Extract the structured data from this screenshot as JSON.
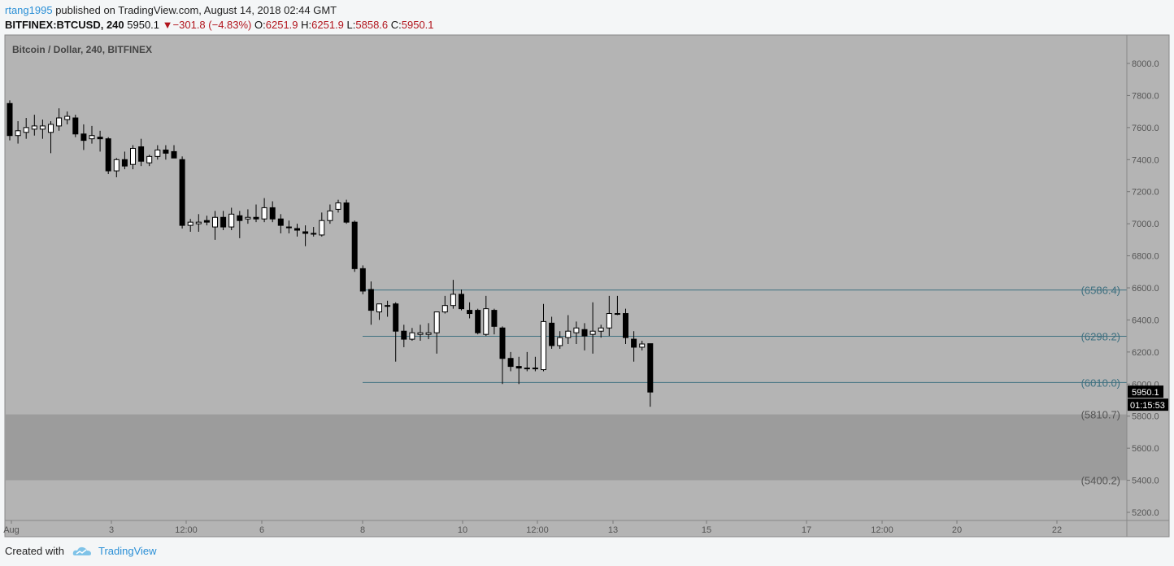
{
  "header": {
    "user": "rtang1995",
    "published_text": "published on TradingView.com, August 14, 2018 02:44 GMT"
  },
  "infobar": {
    "symbol": "BITFINEX:BTCUSD, 240",
    "last": "5950.1",
    "change": "−301.8 (−4.83%)",
    "o_label": "O:",
    "o": "6251.9",
    "h_label": "H:",
    "h": "6251.9",
    "l_label": "L:",
    "l": "5858.6",
    "c_label": "C:",
    "c": "5950.1"
  },
  "chart_data": {
    "type": "candlestick",
    "title": "Bitcoin / Dollar, 240, BITFINEX",
    "ylim": [
      5150,
      8150
    ],
    "yticks": [
      5200,
      5400,
      5600,
      5800,
      6000,
      6200,
      6400,
      6600,
      6800,
      7000,
      7200,
      7400,
      7600,
      7800,
      8000
    ],
    "xticks": [
      "Aug",
      "3",
      "12:00",
      "6",
      "8",
      "10",
      "12:00",
      "13",
      "15",
      "17",
      "12:00",
      "20",
      "22"
    ],
    "candles": [
      {
        "o": 7750,
        "h": 7770,
        "l": 7520,
        "c": 7550
      },
      {
        "o": 7550,
        "h": 7640,
        "l": 7500,
        "c": 7580
      },
      {
        "o": 7570,
        "h": 7660,
        "l": 7530,
        "c": 7600
      },
      {
        "o": 7590,
        "h": 7680,
        "l": 7550,
        "c": 7610
      },
      {
        "o": 7590,
        "h": 7650,
        "l": 7530,
        "c": 7610
      },
      {
        "o": 7570,
        "h": 7640,
        "l": 7440,
        "c": 7620
      },
      {
        "o": 7610,
        "h": 7720,
        "l": 7580,
        "c": 7660
      },
      {
        "o": 7650,
        "h": 7700,
        "l": 7620,
        "c": 7670
      },
      {
        "o": 7660,
        "h": 7680,
        "l": 7540,
        "c": 7560
      },
      {
        "o": 7560,
        "h": 7620,
        "l": 7460,
        "c": 7520
      },
      {
        "o": 7530,
        "h": 7610,
        "l": 7500,
        "c": 7550
      },
      {
        "o": 7540,
        "h": 7580,
        "l": 7450,
        "c": 7530
      },
      {
        "o": 7530,
        "h": 7540,
        "l": 7310,
        "c": 7330
      },
      {
        "o": 7330,
        "h": 7410,
        "l": 7290,
        "c": 7400
      },
      {
        "o": 7400,
        "h": 7450,
        "l": 7340,
        "c": 7360
      },
      {
        "o": 7370,
        "h": 7490,
        "l": 7340,
        "c": 7470
      },
      {
        "o": 7480,
        "h": 7530,
        "l": 7360,
        "c": 7390
      },
      {
        "o": 7380,
        "h": 7430,
        "l": 7360,
        "c": 7420
      },
      {
        "o": 7420,
        "h": 7490,
        "l": 7400,
        "c": 7460
      },
      {
        "o": 7460,
        "h": 7490,
        "l": 7400,
        "c": 7440
      },
      {
        "o": 7450,
        "h": 7490,
        "l": 7410,
        "c": 7410
      },
      {
        "o": 7400,
        "h": 7420,
        "l": 6970,
        "c": 6990
      },
      {
        "o": 6990,
        "h": 7030,
        "l": 6950,
        "c": 7010
      },
      {
        "o": 7000,
        "h": 7060,
        "l": 6950,
        "c": 7010
      },
      {
        "o": 7020,
        "h": 7050,
        "l": 6990,
        "c": 7010
      },
      {
        "o": 6980,
        "h": 7080,
        "l": 6900,
        "c": 7040
      },
      {
        "o": 7040,
        "h": 7080,
        "l": 6960,
        "c": 6980
      },
      {
        "o": 6980,
        "h": 7100,
        "l": 6960,
        "c": 7060
      },
      {
        "o": 7050,
        "h": 7080,
        "l": 6910,
        "c": 7020
      },
      {
        "o": 7030,
        "h": 7090,
        "l": 7000,
        "c": 7040
      },
      {
        "o": 7040,
        "h": 7120,
        "l": 7010,
        "c": 7030
      },
      {
        "o": 7030,
        "h": 7160,
        "l": 7010,
        "c": 7100
      },
      {
        "o": 7100,
        "h": 7140,
        "l": 7010,
        "c": 7030
      },
      {
        "o": 7030,
        "h": 7060,
        "l": 6940,
        "c": 6990
      },
      {
        "o": 6980,
        "h": 7020,
        "l": 6940,
        "c": 6980
      },
      {
        "o": 6970,
        "h": 7000,
        "l": 6920,
        "c": 6960
      },
      {
        "o": 6950,
        "h": 6990,
        "l": 6860,
        "c": 6940
      },
      {
        "o": 6940,
        "h": 6980,
        "l": 6920,
        "c": 6940
      },
      {
        "o": 6930,
        "h": 7070,
        "l": 6920,
        "c": 7020
      },
      {
        "o": 7020,
        "h": 7120,
        "l": 7000,
        "c": 7080
      },
      {
        "o": 7090,
        "h": 7150,
        "l": 7070,
        "c": 7130
      },
      {
        "o": 7130,
        "h": 7150,
        "l": 7000,
        "c": 7010
      },
      {
        "o": 7010,
        "h": 7020,
        "l": 6700,
        "c": 6720
      },
      {
        "o": 6720,
        "h": 6740,
        "l": 6560,
        "c": 6580
      },
      {
        "o": 6590,
        "h": 6640,
        "l": 6370,
        "c": 6460
      },
      {
        "o": 6450,
        "h": 6500,
        "l": 6400,
        "c": 6500
      },
      {
        "o": 6490,
        "h": 6520,
        "l": 6420,
        "c": 6490
      },
      {
        "o": 6500,
        "h": 6510,
        "l": 6140,
        "c": 6330
      },
      {
        "o": 6330,
        "h": 6370,
        "l": 6230,
        "c": 6280
      },
      {
        "o": 6280,
        "h": 6350,
        "l": 6270,
        "c": 6320
      },
      {
        "o": 6310,
        "h": 6370,
        "l": 6270,
        "c": 6320
      },
      {
        "o": 6310,
        "h": 6380,
        "l": 6280,
        "c": 6320
      },
      {
        "o": 6320,
        "h": 6440,
        "l": 6190,
        "c": 6450
      },
      {
        "o": 6450,
        "h": 6550,
        "l": 6440,
        "c": 6490
      },
      {
        "o": 6490,
        "h": 6650,
        "l": 6470,
        "c": 6560
      },
      {
        "o": 6560,
        "h": 6590,
        "l": 6460,
        "c": 6470
      },
      {
        "o": 6460,
        "h": 6510,
        "l": 6410,
        "c": 6440
      },
      {
        "o": 6460,
        "h": 6470,
        "l": 6310,
        "c": 6320
      },
      {
        "o": 6310,
        "h": 6550,
        "l": 6300,
        "c": 6470
      },
      {
        "o": 6460,
        "h": 6470,
        "l": 6310,
        "c": 6360
      },
      {
        "o": 6350,
        "h": 6360,
        "l": 6000,
        "c": 6160
      },
      {
        "o": 6160,
        "h": 6200,
        "l": 6080,
        "c": 6110
      },
      {
        "o": 6110,
        "h": 6170,
        "l": 6000,
        "c": 6100
      },
      {
        "o": 6100,
        "h": 6200,
        "l": 6080,
        "c": 6100
      },
      {
        "o": 6100,
        "h": 6170,
        "l": 6080,
        "c": 6100
      },
      {
        "o": 6090,
        "h": 6500,
        "l": 6080,
        "c": 6390
      },
      {
        "o": 6380,
        "h": 6420,
        "l": 6220,
        "c": 6240
      },
      {
        "o": 6240,
        "h": 6330,
        "l": 6220,
        "c": 6290
      },
      {
        "o": 6290,
        "h": 6430,
        "l": 6250,
        "c": 6330
      },
      {
        "o": 6320,
        "h": 6390,
        "l": 6250,
        "c": 6350
      },
      {
        "o": 6340,
        "h": 6380,
        "l": 6210,
        "c": 6300
      },
      {
        "o": 6310,
        "h": 6510,
        "l": 6190,
        "c": 6330
      },
      {
        "o": 6330,
        "h": 6370,
        "l": 6290,
        "c": 6350
      },
      {
        "o": 6350,
        "h": 6550,
        "l": 6300,
        "c": 6440
      },
      {
        "o": 6440,
        "h": 6550,
        "l": 6430,
        "c": 6440
      },
      {
        "o": 6440,
        "h": 6470,
        "l": 6250,
        "c": 6290
      },
      {
        "o": 6280,
        "h": 6330,
        "l": 6140,
        "c": 6230
      },
      {
        "o": 6230,
        "h": 6270,
        "l": 6210,
        "c": 6250
      },
      {
        "o": 6251.9,
        "h": 6251.9,
        "l": 5858.6,
        "c": 5950.1
      }
    ],
    "levels": [
      {
        "label": "(6586.4)",
        "value": 6586.4
      },
      {
        "label": "(6298.2)",
        "value": 6298.2
      },
      {
        "label": "(6010.0)",
        "value": 6010.0
      }
    ],
    "zone": {
      "top": 5810.7,
      "bottom": 5400.2,
      "top_label": "(5810.7)",
      "bottom_label": "(5400.2)"
    },
    "last_price_label": "5950.1",
    "countdown": "01:15:53",
    "colors": {
      "bg": "#b4b4b4",
      "zone": "#9c9c9c",
      "level": "#3e7080",
      "up": "#ffffff",
      "down": "#000000"
    }
  },
  "footer": {
    "created_with": "Created with",
    "brand": "TradingView"
  }
}
